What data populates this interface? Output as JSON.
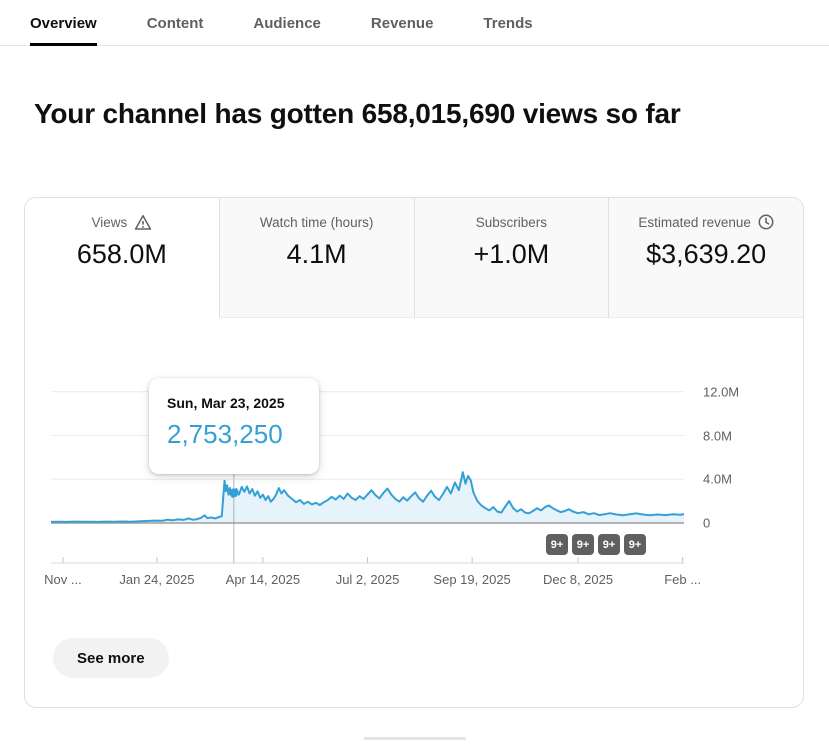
{
  "tabs": [
    {
      "label": "Overview",
      "active": true
    },
    {
      "label": "Content",
      "active": false
    },
    {
      "label": "Audience",
      "active": false
    },
    {
      "label": "Revenue",
      "active": false
    },
    {
      "label": "Trends",
      "active": false
    }
  ],
  "headline": "Your channel has gotten 658,015,690 views so far",
  "stats": {
    "cards": [
      {
        "label": "Views",
        "icon": "warning-icon",
        "value": "658.0M",
        "selected": true
      },
      {
        "label": "Watch time (hours)",
        "icon": null,
        "value": "4.1M",
        "selected": false
      },
      {
        "label": "Subscribers",
        "icon": null,
        "value": "+1.0M",
        "selected": false
      },
      {
        "label": "Estimated revenue",
        "icon": "clock-icon",
        "value": "$3,639.20",
        "selected": false
      }
    ]
  },
  "chart_data": {
    "type": "area",
    "metric": "Views",
    "x_ticks": [
      "Nov ...",
      "Jan 24, 2025",
      "Apr 14, 2025",
      "Jul 2, 2025",
      "Sep 19, 2025",
      "Dec 8, 2025",
      "Feb ..."
    ],
    "x_tick_days": [
      9,
      80,
      160,
      239,
      318,
      398,
      477
    ],
    "x_domain_days": 478,
    "y_ticks": [
      "12.0M",
      "8.0M",
      "4.0M",
      "0"
    ],
    "y_tick_values_M": [
      12,
      8,
      4,
      0
    ],
    "ylim_M": [
      0,
      13.9
    ],
    "grid": true,
    "legend": false,
    "line_color": "#35a0d6",
    "fill_color": "rgba(53,160,214,0.12)",
    "highlighted_point": {
      "date_label": "Sun, Mar 23, 2025",
      "value_label": "2,753,250",
      "day": 138,
      "value_M": 2.75325
    },
    "video_markers": [
      "9+",
      "9+",
      "9+",
      "9+"
    ],
    "series": [
      {
        "name": "Views",
        "points": [
          [
            0,
            0.1
          ],
          [
            6,
            0.12
          ],
          [
            12,
            0.1
          ],
          [
            18,
            0.13
          ],
          [
            24,
            0.11
          ],
          [
            30,
            0.12
          ],
          [
            36,
            0.1
          ],
          [
            42,
            0.13
          ],
          [
            48,
            0.12
          ],
          [
            54,
            0.14
          ],
          [
            60,
            0.12
          ],
          [
            66,
            0.15
          ],
          [
            72,
            0.18
          ],
          [
            78,
            0.22
          ],
          [
            84,
            0.2
          ],
          [
            88,
            0.3
          ],
          [
            92,
            0.25
          ],
          [
            96,
            0.33
          ],
          [
            100,
            0.28
          ],
          [
            104,
            0.42
          ],
          [
            107,
            0.3
          ],
          [
            110,
            0.35
          ],
          [
            113,
            0.45
          ],
          [
            116,
            0.7
          ],
          [
            118,
            0.45
          ],
          [
            121,
            0.5
          ],
          [
            124,
            0.42
          ],
          [
            127,
            0.55
          ],
          [
            129,
            0.62
          ],
          [
            131,
            3.85
          ],
          [
            132,
            2.9
          ],
          [
            133,
            3.45
          ],
          [
            134,
            2.6
          ],
          [
            135,
            3.2
          ],
          [
            137,
            2.4
          ],
          [
            138,
            2.75
          ],
          [
            140,
            3.1
          ],
          [
            142,
            2.6
          ],
          [
            144,
            3.3
          ],
          [
            146,
            2.85
          ],
          [
            148,
            3.35
          ],
          [
            150,
            2.7
          ],
          [
            152,
            3.1
          ],
          [
            154,
            2.5
          ],
          [
            156,
            2.9
          ],
          [
            158,
            2.3
          ],
          [
            160,
            2.6
          ],
          [
            162,
            2.1
          ],
          [
            164,
            2.45
          ],
          [
            166,
            1.95
          ],
          [
            168,
            2.2
          ],
          [
            170,
            2.6
          ],
          [
            172,
            3.2
          ],
          [
            174,
            2.7
          ],
          [
            176,
            3.0
          ],
          [
            179,
            2.5
          ],
          [
            182,
            2.2
          ],
          [
            185,
            1.9
          ],
          [
            188,
            2.1
          ],
          [
            191,
            1.75
          ],
          [
            194,
            1.95
          ],
          [
            197,
            1.7
          ],
          [
            200,
            1.85
          ],
          [
            203,
            1.65
          ],
          [
            206,
            1.9
          ],
          [
            209,
            2.1
          ],
          [
            212,
            2.4
          ],
          [
            215,
            2.15
          ],
          [
            218,
            2.5
          ],
          [
            221,
            2.2
          ],
          [
            224,
            2.7
          ],
          [
            227,
            2.3
          ],
          [
            230,
            2.1
          ],
          [
            233,
            2.45
          ],
          [
            236,
            2.2
          ],
          [
            239,
            2.6
          ],
          [
            242,
            3.0
          ],
          [
            245,
            2.55
          ],
          [
            248,
            2.25
          ],
          [
            251,
            2.75
          ],
          [
            254,
            3.15
          ],
          [
            257,
            2.6
          ],
          [
            260,
            2.2
          ],
          [
            263,
            1.95
          ],
          [
            266,
            2.35
          ],
          [
            269,
            2.05
          ],
          [
            272,
            2.45
          ],
          [
            275,
            2.8
          ],
          [
            278,
            2.25
          ],
          [
            281,
            1.95
          ],
          [
            284,
            2.5
          ],
          [
            287,
            2.95
          ],
          [
            290,
            2.4
          ],
          [
            293,
            2.1
          ],
          [
            296,
            2.65
          ],
          [
            299,
            3.3
          ],
          [
            302,
            2.7
          ],
          [
            305,
            3.7
          ],
          [
            308,
            3.0
          ],
          [
            311,
            4.65
          ],
          [
            313,
            3.6
          ],
          [
            315,
            4.3
          ],
          [
            317,
            3.9
          ],
          [
            319,
            2.8
          ],
          [
            322,
            2.0
          ],
          [
            325,
            1.6
          ],
          [
            328,
            1.35
          ],
          [
            331,
            1.15
          ],
          [
            334,
            1.45
          ],
          [
            337,
            1.05
          ],
          [
            340,
            0.95
          ],
          [
            343,
            1.5
          ],
          [
            346,
            2.0
          ],
          [
            349,
            1.35
          ],
          [
            352,
            1.05
          ],
          [
            355,
            1.25
          ],
          [
            358,
            0.95
          ],
          [
            361,
            0.9
          ],
          [
            364,
            1.1
          ],
          [
            367,
            1.35
          ],
          [
            370,
            1.15
          ],
          [
            373,
            1.45
          ],
          [
            376,
            1.6
          ],
          [
            379,
            1.35
          ],
          [
            382,
            1.15
          ],
          [
            385,
            1.0
          ],
          [
            388,
            1.1
          ],
          [
            391,
            1.25
          ],
          [
            394,
            1.05
          ],
          [
            398,
            0.9
          ],
          [
            402,
            1.0
          ],
          [
            406,
            0.8
          ],
          [
            410,
            0.9
          ],
          [
            414,
            0.72
          ],
          [
            418,
            0.8
          ],
          [
            422,
            0.9
          ],
          [
            427,
            0.78
          ],
          [
            432,
            0.7
          ],
          [
            437,
            0.8
          ],
          [
            442,
            0.88
          ],
          [
            447,
            0.78
          ],
          [
            452,
            0.7
          ],
          [
            458,
            0.78
          ],
          [
            464,
            0.72
          ],
          [
            470,
            0.8
          ],
          [
            475,
            0.76
          ],
          [
            478,
            0.8
          ]
        ]
      }
    ]
  },
  "see_more_label": "See more"
}
